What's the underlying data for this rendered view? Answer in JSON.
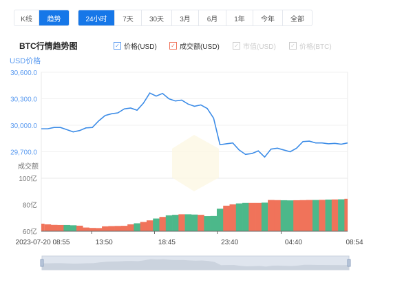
{
  "tabs": {
    "view": [
      {
        "label": "K线",
        "active": false
      },
      {
        "label": "趋势",
        "active": true
      }
    ],
    "range": [
      {
        "label": "24小时",
        "active": true
      },
      {
        "label": "7天"
      },
      {
        "label": "30天"
      },
      {
        "label": "3月"
      },
      {
        "label": "6月"
      },
      {
        "label": "1年"
      },
      {
        "label": "今年"
      },
      {
        "label": "全部"
      }
    ]
  },
  "title": "BTC行情趋势图",
  "legend": [
    {
      "label": "价格(USD)",
      "checked": true,
      "color": "#5b9bf0"
    },
    {
      "label": "成交额(USD)",
      "checked": true,
      "color": "#f0735a"
    },
    {
      "label": "市值(USD)",
      "checked": false,
      "color": "#cccccc"
    },
    {
      "label": "价格(BTC)",
      "checked": false,
      "color": "#cccccc"
    }
  ],
  "chart_data": [
    {
      "type": "line",
      "ylabel": "USD价格",
      "ylim": [
        29600,
        30600
      ],
      "yticks": [
        "30,600.0",
        "30,300.0",
        "30,000.0",
        "29,700.0"
      ],
      "ytick_values": [
        30600,
        30300,
        30000,
        29700
      ],
      "color": "#3c8ce7",
      "x_start": "2023-07-20 08:55",
      "x_interval_minutes": 30,
      "values": [
        29960,
        29960,
        29975,
        29975,
        29950,
        29925,
        29940,
        29970,
        29975,
        30050,
        30110,
        30130,
        30140,
        30185,
        30195,
        30170,
        30250,
        30365,
        30330,
        30360,
        30300,
        30275,
        30285,
        30240,
        30215,
        30230,
        30190,
        30080,
        29780,
        29790,
        29800,
        29720,
        29670,
        29680,
        29710,
        29640,
        29730,
        29740,
        29720,
        29700,
        29740,
        29815,
        29820,
        29800,
        29800,
        29790,
        29795,
        29785,
        29800
      ]
    },
    {
      "type": "bar",
      "ylabel": "成交额",
      "ylim": [
        60,
        100
      ],
      "yticks": [
        "100亿",
        "80亿",
        "60亿"
      ],
      "ytick_values": [
        100,
        80,
        60
      ],
      "unit": "亿",
      "colors": {
        "up": "#f0735a",
        "down": "#4cb88a"
      },
      "values": [
        65.7,
        65.2,
        64.8,
        64.7,
        64.7,
        64.5,
        64.2,
        62.8,
        62.5,
        62.4,
        63.7,
        63.9,
        64,
        64.1,
        65.2,
        66,
        67,
        68.2,
        69.6,
        70.8,
        72,
        72.4,
        72.8,
        72.8,
        72.6,
        72.4,
        71.4,
        71.5,
        77,
        79.3,
        80.3,
        81,
        81.4,
        81.4,
        81.4,
        81.6,
        83.6,
        83.5,
        83.4,
        83.3,
        83.4,
        83.5,
        83.6,
        83.6,
        83.7,
        83.9,
        84,
        84.1,
        84.5
      ]
    }
  ],
  "xaxis": {
    "labels": [
      {
        "text": "2023-07-20 08:55",
        "min": 0
      },
      {
        "text": "13:50",
        "min": 295
      },
      {
        "text": "18:45",
        "min": 590
      },
      {
        "text": "23:40",
        "min": 885
      },
      {
        "text": "04:40",
        "min": 1185
      },
      {
        "text": "08:54",
        "min": 1439
      }
    ],
    "total_min": 1439
  }
}
